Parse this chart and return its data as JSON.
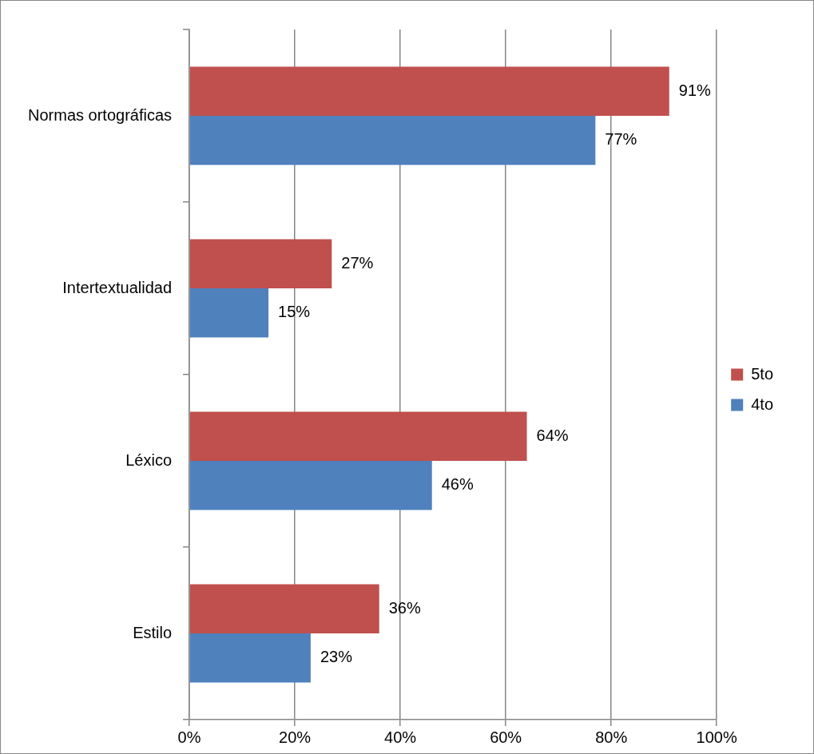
{
  "chart_data": {
    "type": "bar",
    "orientation": "horizontal",
    "categories": [
      "Normas ortográficas",
      "Intertextualidad",
      "Léxico",
      "Estilo"
    ],
    "series": [
      {
        "name": "5to",
        "color": "#c0504d",
        "values": [
          91,
          27,
          64,
          36
        ],
        "value_labels": [
          "91%",
          "27%",
          "64%",
          "36%"
        ]
      },
      {
        "name": "4to",
        "color": "#4f81bd",
        "values": [
          77,
          15,
          46,
          23
        ],
        "value_labels": [
          "77%",
          "15%",
          "46%",
          "23%"
        ]
      }
    ],
    "xlim": [
      0,
      100
    ],
    "xticks": [
      {
        "value": 0,
        "label": "0%"
      },
      {
        "value": 20,
        "label": "20%"
      },
      {
        "value": 40,
        "label": "40%"
      },
      {
        "value": 60,
        "label": "60%"
      },
      {
        "value": 80,
        "label": "80%"
      },
      {
        "value": 100,
        "label": "100%"
      }
    ],
    "grid": "x",
    "legend": "right"
  }
}
